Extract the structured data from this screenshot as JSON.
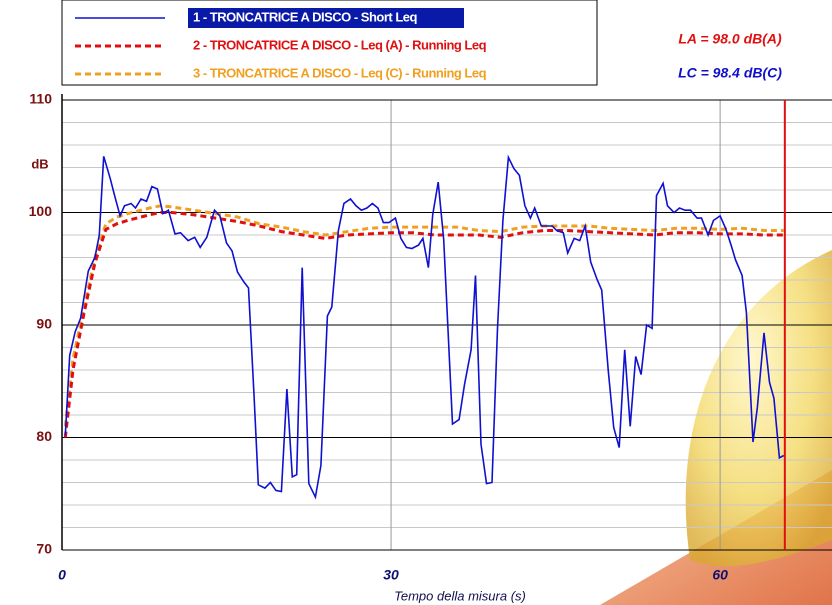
{
  "chart_data": {
    "type": "line",
    "xlabel": "Tempo della misura (s)",
    "ylabel": "dB",
    "annotations": [
      {
        "text": "LA = 98.0 dB(A)",
        "color": "#e01010"
      },
      {
        "text": "LC = 98.4 dB(C)",
        "color": "#1010c8"
      }
    ],
    "xlim": [
      0,
      70.2
    ],
    "ylim": [
      70,
      110
    ],
    "xticks": [
      0,
      30,
      60
    ],
    "yticks": [
      70,
      80,
      90,
      100,
      110
    ],
    "yminor": [
      72,
      74,
      76,
      78,
      82,
      84,
      86,
      88,
      92,
      94,
      96,
      98,
      102,
      104,
      106,
      108
    ],
    "cursor_x": 65.9,
    "grid": true,
    "series": [
      {
        "name": "1 - TRONCATRICE A DISCO - Short Leq",
        "color": "#1010d0",
        "style": "solid",
        "x": [
          0.3,
          0.7,
          1.2,
          1.7,
          2.4,
          3.0,
          3.4,
          3.8,
          4.4,
          4.8,
          5.3,
          5.7,
          6.3,
          6.7,
          7.2,
          7.7,
          8.2,
          8.7,
          9.2,
          9.7,
          10.3,
          10.8,
          11.5,
          12.1,
          12.6,
          13.2,
          13.9,
          14.4,
          15.0,
          15.5,
          16.0,
          16.6,
          17.0,
          17.5,
          17.9,
          18.5,
          19.0,
          19.5,
          20.0,
          20.5,
          21.0,
          21.4,
          21.9,
          22.5,
          23.1,
          23.6,
          24.2,
          24.6,
          25.2,
          25.7,
          26.3,
          26.8,
          27.3,
          27.8,
          28.3,
          28.8,
          29.3,
          29.8,
          30.4,
          30.9,
          31.4,
          31.9,
          32.5,
          32.9,
          33.4,
          33.8,
          34.3,
          34.8,
          35.6,
          36.2,
          36.7,
          37.3,
          37.7,
          38.2,
          38.7,
          39.2,
          39.7,
          40.2,
          40.7,
          41.2,
          41.7,
          42.2,
          42.7,
          43.1,
          43.7,
          44.1,
          44.7,
          45.1,
          45.7,
          46.1,
          46.7,
          47.2,
          47.7,
          48.2,
          48.8,
          49.2,
          49.8,
          50.3,
          50.8,
          51.3,
          51.8,
          52.3,
          52.8,
          53.3,
          53.8,
          54.2,
          54.8,
          55.2,
          55.8,
          56.3,
          56.8,
          57.3,
          57.9,
          58.3,
          58.9,
          59.4,
          60.0,
          60.5,
          61.0,
          61.4,
          62.0,
          62.4,
          63.0,
          63.4,
          64.0,
          64.5,
          64.9,
          65.4,
          65.8
        ],
        "values": [
          80.2,
          87.3,
          89.4,
          90.6,
          94.8,
          96,
          98,
          105,
          103,
          101.5,
          99.7,
          100.6,
          100.8,
          100.4,
          101.2,
          101,
          102.3,
          102.1,
          99.9,
          100.2,
          98.1,
          98.2,
          97.5,
          97.8,
          96.9,
          97.8,
          100.2,
          99.7,
          97.3,
          96.6,
          94.7,
          93.8,
          93.3,
          83.8,
          75.8,
          75.5,
          76,
          75.3,
          75.2,
          84.3,
          76.5,
          76.7,
          95.1,
          75.9,
          74.7,
          77.5,
          90.8,
          91.6,
          98.4,
          100.8,
          101.2,
          100.6,
          100.2,
          100.4,
          100.8,
          100.4,
          99.1,
          99.1,
          99.5,
          97.7,
          96.9,
          96.8,
          97.1,
          97.7,
          95.1,
          99.8,
          102.7,
          97.6,
          81.2,
          81.6,
          84.7,
          87.8,
          94.4,
          79.4,
          75.9,
          76,
          89.7,
          99.3,
          104.9,
          103.9,
          103.3,
          100.6,
          99.5,
          100.4,
          98.8,
          98.8,
          98.8,
          98.4,
          98.2,
          96.4,
          97.7,
          97.5,
          98.8,
          95.6,
          94,
          93.1,
          86,
          80.9,
          79.1,
          87.8,
          81,
          87.2,
          85.6,
          90,
          89.7,
          101.5,
          102.6,
          100.6,
          100,
          100.4,
          100.2,
          100.2,
          99.5,
          99.5,
          98,
          99.3,
          99.7,
          98.6,
          97.1,
          95.8,
          94.4,
          91.1,
          79.6,
          82.7,
          89.3,
          84.9,
          83.5,
          78.2,
          78.4
        ]
      },
      {
        "name": "2 - TRONCATRICE A DISCO - Leq (A) - Running Leq",
        "color": "#e01010",
        "style": "dashed",
        "x": [
          0.3,
          1,
          2,
          3,
          4,
          5,
          6,
          8,
          9,
          10,
          12,
          14,
          16,
          18,
          20,
          22,
          24,
          26,
          28,
          30,
          32,
          34,
          36,
          38,
          40,
          42,
          44,
          46,
          48,
          50,
          52,
          54,
          56,
          58,
          60,
          62,
          64,
          65.8
        ],
        "values": [
          80,
          86,
          91,
          95.5,
          98.5,
          99,
          99.3,
          99.8,
          100,
          100,
          99.8,
          99.5,
          99.2,
          98.8,
          98.3,
          98,
          97.7,
          98,
          98.1,
          98.2,
          98.2,
          98,
          98,
          98,
          97.8,
          98.2,
          98.4,
          98.4,
          98.3,
          98.2,
          98.1,
          98,
          98.2,
          98.2,
          98.1,
          98.1,
          98,
          98
        ]
      },
      {
        "name": "3 - TRONCATRICE A DISCO - Leq (C) - Running Leq",
        "color": "#f0a020",
        "style": "dashed",
        "x": [
          0.3,
          1,
          2,
          3,
          4,
          5,
          6,
          8,
          9,
          10,
          12,
          14,
          16,
          18,
          20,
          22,
          24,
          26,
          28,
          30,
          32,
          34,
          36,
          38,
          40,
          42,
          44,
          46,
          48,
          50,
          52,
          54,
          56,
          58,
          60,
          62,
          64,
          65.8
        ],
        "values": [
          81,
          87,
          91.5,
          96,
          99,
          99.6,
          99.9,
          100.4,
          100.6,
          100.5,
          100.2,
          99.9,
          99.6,
          99,
          98.7,
          98.3,
          98,
          98.3,
          98.6,
          98.7,
          98.7,
          98.7,
          98.7,
          98.4,
          98.3,
          98.7,
          98.8,
          98.8,
          98.8,
          98.6,
          98.5,
          98.4,
          98.6,
          98.6,
          98.5,
          98.6,
          98.4,
          98.4
        ]
      }
    ]
  }
}
